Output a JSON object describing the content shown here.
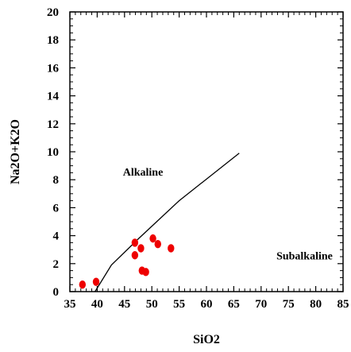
{
  "chart_data": {
    "type": "scatter",
    "title": "",
    "xlabel": "SiO2",
    "ylabel": "Na2O+K2O",
    "xlim": [
      35,
      85
    ],
    "ylim": [
      0,
      20
    ],
    "x_ticks": [
      35,
      40,
      45,
      50,
      55,
      60,
      65,
      70,
      75,
      80,
      85
    ],
    "y_ticks": [
      0,
      2,
      4,
      6,
      8,
      10,
      12,
      14,
      16,
      18,
      20
    ],
    "grid": false,
    "series": [
      {
        "marker_color": "#ee0000",
        "points": [
          {
            "x": 37.3,
            "y": 0.5
          },
          {
            "x": 39.8,
            "y": 0.7
          },
          {
            "x": 46.9,
            "y": 3.5
          },
          {
            "x": 46.9,
            "y": 2.6
          },
          {
            "x": 48.0,
            "y": 3.1
          },
          {
            "x": 48.2,
            "y": 1.5
          },
          {
            "x": 48.9,
            "y": 1.4
          },
          {
            "x": 50.2,
            "y": 3.8
          },
          {
            "x": 51.1,
            "y": 3.4
          },
          {
            "x": 53.5,
            "y": 3.1
          }
        ]
      }
    ],
    "divider_line": [
      {
        "x": 39.6,
        "y": 0
      },
      {
        "x": 42.6,
        "y": 1.9
      },
      {
        "x": 47.6,
        "y": 3.8
      },
      {
        "x": 55.0,
        "y": 6.5
      },
      {
        "x": 66.0,
        "y": 9.9
      }
    ],
    "annotations": [
      {
        "text": "Alkaline",
        "x": 44.7,
        "y": 8.3
      },
      {
        "text": "Subalkaline",
        "x": 72.8,
        "y": 2.3
      }
    ]
  }
}
